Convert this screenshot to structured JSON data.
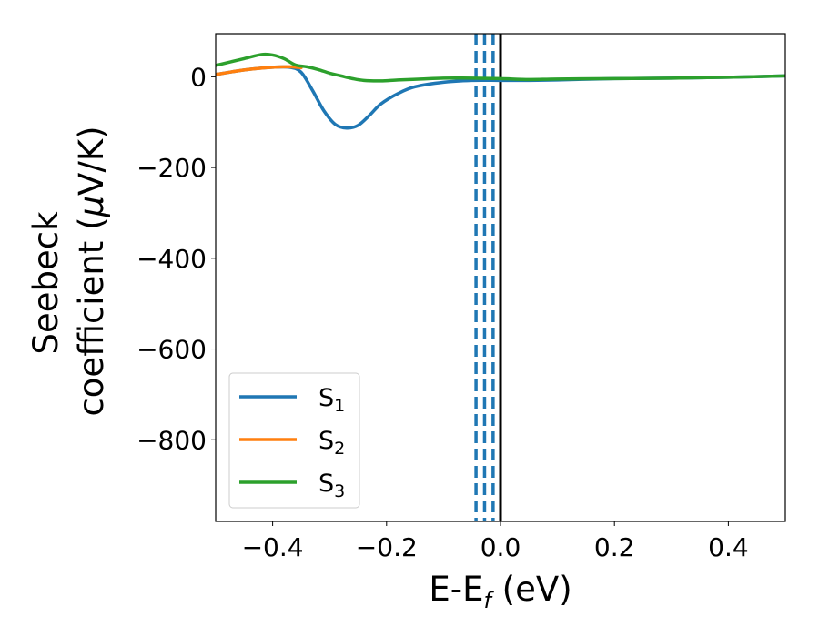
{
  "chart_data": {
    "type": "line",
    "xlabel": "E-E",
    "xlabel_sub": "f",
    "xlabel_unit": " (eV)",
    "ylabel_line1": "Seebeck",
    "ylabel_line2_prefix": "coefficient  (",
    "ylabel_line2_mu": "μ",
    "ylabel_line2_suffix": "V/K)",
    "xlim": [
      -0.5,
      0.5
    ],
    "ylim": [
      -980,
      95
    ],
    "x_ticks": [
      -0.4,
      -0.2,
      0.0,
      0.2,
      0.4
    ],
    "x_tick_labels": [
      "−0.4",
      "−0.2",
      "0.0",
      "0.2",
      "0.4"
    ],
    "y_ticks": [
      0,
      -200,
      -400,
      -600,
      -800
    ],
    "y_tick_labels": [
      "0",
      "−200",
      "−400",
      "−600",
      "−800"
    ],
    "grid": false,
    "legend_position": "lower-left",
    "series": [
      {
        "name": "S",
        "sub": "1",
        "color": "#1f77b4",
        "points": [
          [
            -0.5,
            5
          ],
          [
            -0.45,
            15
          ],
          [
            -0.4,
            21
          ],
          [
            -0.37,
            21
          ],
          [
            -0.35,
            10
          ],
          [
            -0.33,
            -30
          ],
          [
            -0.31,
            -75
          ],
          [
            -0.29,
            -105
          ],
          [
            -0.27,
            -113
          ],
          [
            -0.25,
            -107
          ],
          [
            -0.23,
            -85
          ],
          [
            -0.21,
            -60
          ],
          [
            -0.18,
            -37
          ],
          [
            -0.15,
            -22
          ],
          [
            -0.1,
            -12
          ],
          [
            -0.05,
            -8
          ],
          [
            0.0,
            -8
          ],
          [
            0.05,
            -8
          ],
          [
            0.1,
            -7
          ],
          [
            0.2,
            -4
          ],
          [
            0.3,
            -3
          ],
          [
            0.4,
            -1
          ],
          [
            0.5,
            2
          ]
        ]
      },
      {
        "name": "S",
        "sub": "2",
        "color": "#ff7f0e",
        "points": [
          [
            -0.5,
            5
          ],
          [
            -0.45,
            15
          ],
          [
            -0.4,
            21
          ],
          [
            -0.37,
            22
          ],
          [
            -0.35,
            20
          ]
        ]
      },
      {
        "name": "S",
        "sub": "3",
        "color": "#2ca02c",
        "points": [
          [
            -0.5,
            25
          ],
          [
            -0.45,
            40
          ],
          [
            -0.42,
            49
          ],
          [
            -0.4,
            48
          ],
          [
            -0.38,
            40
          ],
          [
            -0.36,
            26
          ],
          [
            -0.34,
            22
          ],
          [
            -0.32,
            16
          ],
          [
            -0.3,
            8
          ],
          [
            -0.28,
            2
          ],
          [
            -0.26,
            -4
          ],
          [
            -0.24,
            -8
          ],
          [
            -0.21,
            -9
          ],
          [
            -0.18,
            -7
          ],
          [
            -0.14,
            -5
          ],
          [
            -0.1,
            -3
          ],
          [
            -0.05,
            -3
          ],
          [
            0.0,
            -4
          ],
          [
            0.05,
            -6
          ],
          [
            0.1,
            -5
          ],
          [
            0.2,
            -4
          ],
          [
            0.3,
            -3
          ],
          [
            0.4,
            -1
          ],
          [
            0.5,
            2
          ]
        ]
      }
    ],
    "vlines": [
      {
        "x": -0.043,
        "color": "#1f77b4",
        "style": "dashed"
      },
      {
        "x": -0.028,
        "color": "#1f77b4",
        "style": "dashed"
      },
      {
        "x": -0.013,
        "color": "#1f77b4",
        "style": "dashed"
      },
      {
        "x": 0.0,
        "color": "#000000",
        "style": "solid"
      }
    ]
  }
}
